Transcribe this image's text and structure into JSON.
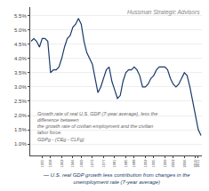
{
  "chart_data": {
    "type": "line",
    "x": [
      1951,
      1952,
      1953,
      1954,
      1955,
      1956,
      1957,
      1958,
      1959,
      1960,
      1961,
      1962,
      1963,
      1964,
      1965,
      1966,
      1967,
      1968,
      1969,
      1970,
      1971,
      1972,
      1973,
      1974,
      1975,
      1976,
      1977,
      1978,
      1979,
      1980,
      1981,
      1982,
      1983,
      1984,
      1985,
      1986,
      1987,
      1988,
      1989,
      1990,
      1991,
      1992,
      1993,
      1994,
      1995,
      1996,
      1997,
      1998,
      1999,
      2000,
      2001,
      2002,
      2003,
      2004,
      2005,
      2006,
      2007,
      2008,
      2009,
      2010,
      2011,
      2012
    ],
    "series": [
      {
        "name": "— U.S. real GDP growth less contribution from changes in the unemployment rate (7-year average)",
        "color": "#1a3a6b",
        "values": [
          0.046,
          0.047,
          0.046,
          0.044,
          0.047,
          0.047,
          0.046,
          0.035,
          0.036,
          0.036,
          0.037,
          0.04,
          0.044,
          0.047,
          0.048,
          0.051,
          0.052,
          0.054,
          0.052,
          0.046,
          0.042,
          0.04,
          0.038,
          0.033,
          0.028,
          0.03,
          0.033,
          0.036,
          0.037,
          0.032,
          0.029,
          0.026,
          0.027,
          0.032,
          0.035,
          0.036,
          0.036,
          0.037,
          0.036,
          0.034,
          0.03,
          0.03,
          0.031,
          0.033,
          0.034,
          0.036,
          0.037,
          0.037,
          0.037,
          0.036,
          0.033,
          0.031,
          0.03,
          0.031,
          0.033,
          0.035,
          0.034,
          0.03,
          0.025,
          0.02,
          0.015,
          0.013
        ]
      }
    ],
    "xlim": [
      1950.7,
      2012.3
    ],
    "xticks": [
      1955,
      1958,
      1962,
      1966,
      1969,
      1973,
      1977,
      1981,
      1985,
      1988,
      1992,
      1995,
      1999,
      2002,
      2006,
      2010,
      2011
    ],
    "ylim": [
      0.006,
      0.058
    ],
    "yticks": [
      {
        "value": 0.01,
        "label": "1.0%"
      },
      {
        "value": 0.015,
        "label": "1.5%"
      },
      {
        "value": 0.02,
        "label": "2.0%"
      },
      {
        "value": 0.025,
        "label": "2.5%"
      },
      {
        "value": 0.03,
        "label": "3.0%"
      },
      {
        "value": 0.035,
        "label": "3.5%"
      },
      {
        "value": 0.04,
        "label": "4.0%"
      },
      {
        "value": 0.045,
        "label": "4.5%"
      },
      {
        "value": 0.05,
        "label": "5.0%"
      },
      {
        "value": 0.055,
        "label": "5.5%"
      }
    ],
    "grid": "y",
    "legend": "bottom",
    "annotations": [
      "Hussman Strategic Advisors",
      "Growth rate of real U.S. GDP (7-year average), less the difference between\nthe growth rate of civilian employment and the civilian labor force.\nGDPg - (CEg - CLFg)"
    ]
  }
}
